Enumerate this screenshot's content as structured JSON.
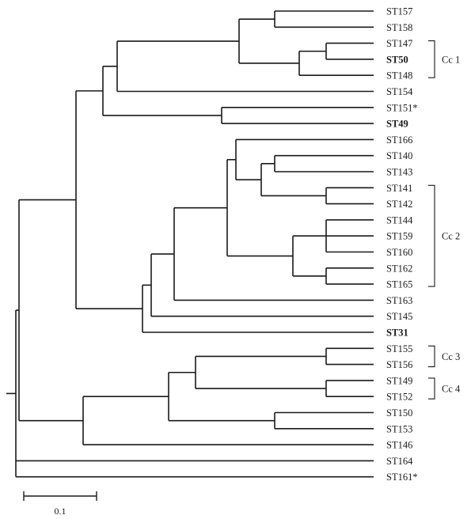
{
  "leaves": [
    {
      "id": "ST157"
    },
    {
      "id": "ST158"
    },
    {
      "id": "ST147"
    },
    {
      "id": "ST50",
      "bold": true
    },
    {
      "id": "ST148"
    },
    {
      "id": "ST154"
    },
    {
      "id": "ST151*"
    },
    {
      "id": "ST49",
      "bold": true
    },
    {
      "id": "ST166"
    },
    {
      "id": "ST140"
    },
    {
      "id": "ST143"
    },
    {
      "id": "ST141"
    },
    {
      "id": "ST142"
    },
    {
      "id": "ST144"
    },
    {
      "id": "ST159"
    },
    {
      "id": "ST160"
    },
    {
      "id": "ST162"
    },
    {
      "id": "ST165"
    },
    {
      "id": "ST163"
    },
    {
      "id": "ST145"
    },
    {
      "id": "ST31",
      "bold": true
    },
    {
      "id": "ST155"
    },
    {
      "id": "ST156"
    },
    {
      "id": "ST149"
    },
    {
      "id": "ST152"
    },
    {
      "id": "ST150"
    },
    {
      "id": "ST153"
    },
    {
      "id": "ST146"
    },
    {
      "id": "ST164"
    },
    {
      "id": "ST161*"
    }
  ],
  "clonal_complexes": [
    {
      "label": "Cc 1",
      "leaves": [
        "ST147",
        "ST148"
      ]
    },
    {
      "label": "Cc 2",
      "leaves": [
        "ST141",
        "ST165"
      ]
    },
    {
      "label": "Cc 3",
      "leaves": [
        "ST155",
        "ST156"
      ]
    },
    {
      "label": "Cc 4",
      "leaves": [
        "ST149",
        "ST152"
      ]
    }
  ],
  "scale_bar": {
    "value": 0.1,
    "label": "0.1"
  }
}
